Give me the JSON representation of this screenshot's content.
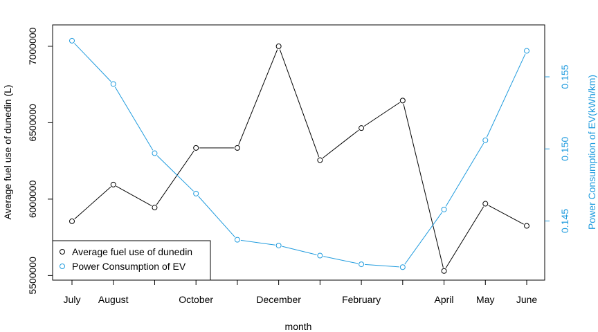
{
  "chart_data": {
    "type": "line",
    "xlabel": "month",
    "x_tick_labels": [
      "July",
      "August",
      "",
      "October",
      "",
      "December",
      "",
      "February",
      "",
      "April",
      "May",
      "June"
    ],
    "series": [
      {
        "name": "Average fuel use of dunedin",
        "axis": "left",
        "color": "#000000",
        "values": [
          5855000,
          6095000,
          5945000,
          6335000,
          6335000,
          7000000,
          6255000,
          6465000,
          6645000,
          5530000,
          5970000,
          5825000
        ]
      },
      {
        "name": "Power Consumption of EV",
        "axis": "right",
        "color": "#1f9bde",
        "values": [
          0.1575,
          0.1545,
          0.1497,
          0.1469,
          0.1437,
          0.1433,
          0.1426,
          0.142,
          0.1418,
          0.1458,
          0.1506,
          0.1568
        ]
      }
    ],
    "y_left": {
      "label": "Average fuel use of dunedin (L)",
      "range": [
        5470000,
        7140000
      ],
      "ticks": [
        5500000,
        6000000,
        6500000,
        7000000
      ],
      "tick_labels": [
        "5500000",
        "6000000",
        "6500000",
        "7000000"
      ]
    },
    "y_right": {
      "label": "Power Consumption of EV(kWh/km)",
      "range": [
        0.1409,
        0.1586
      ],
      "ticks": [
        0.145,
        0.15,
        0.155
      ],
      "tick_labels": [
        "0.145",
        "0.150",
        "0.155"
      ],
      "color": "#1f9bde"
    },
    "legend": {
      "placement": "bottom-left",
      "entries": [
        "Average fuel use of dunedin",
        "Power Consumption of EV"
      ]
    },
    "grid": false
  }
}
